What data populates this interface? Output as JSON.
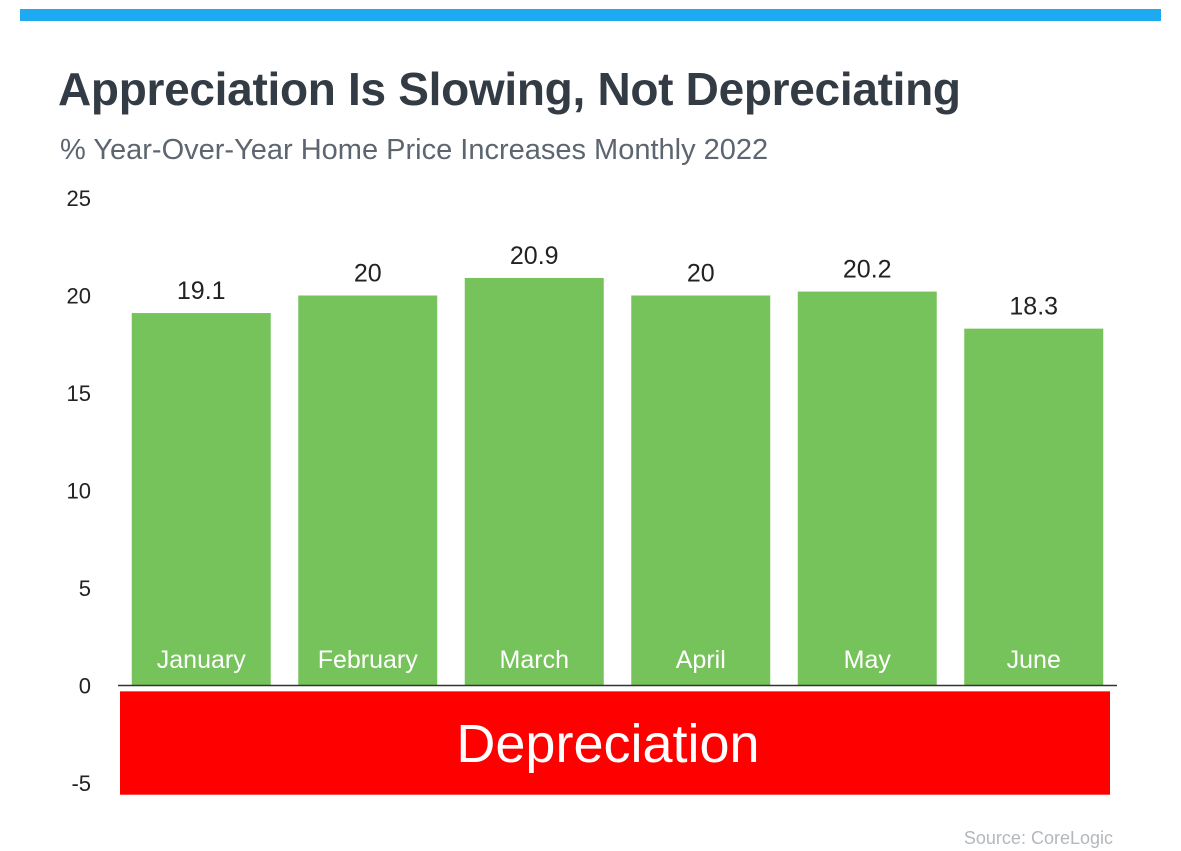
{
  "colors": {
    "accent_bar": "#1eaaf1",
    "bar": "#76c35b",
    "depreciation": "#ff0000",
    "title": "#333b45"
  },
  "title": "Appreciation Is Slowing, Not Depreciating",
  "subtitle": "% Year-Over-Year Home Price Increases Monthly 2022",
  "source": "Source: CoreLogic",
  "chart_data": {
    "type": "bar",
    "categories": [
      "January",
      "February",
      "March",
      "April",
      "May",
      "June"
    ],
    "values": [
      19.1,
      20,
      20.9,
      20,
      20.2,
      18.3
    ],
    "value_labels": [
      "19.1",
      "20",
      "20.9",
      "20",
      "20.2",
      "18.3"
    ],
    "ylim": [
      -5,
      25
    ],
    "yticks": [
      25,
      20,
      15,
      10,
      5,
      0,
      -5
    ],
    "grid": false,
    "legend": "none",
    "annotations": [
      {
        "text": "Depreciation",
        "y_range": [
          -5.6,
          -0.3
        ],
        "color": "#ff0000"
      }
    ]
  }
}
